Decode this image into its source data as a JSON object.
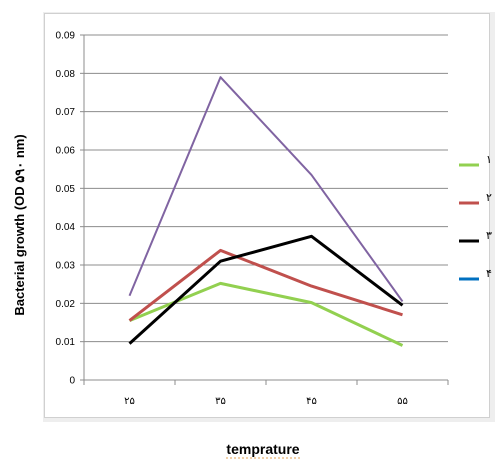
{
  "chart_data": {
    "type": "line",
    "x": [
      "۲۵",
      "۳۵",
      "۴۵",
      "۵۵"
    ],
    "ylabel": "Bacterial growth (OD ۵۹۰ nm)",
    "xlabel": "temprature",
    "ylim": [
      0,
      0.09
    ],
    "yticks": [
      "0",
      "0.01",
      "0.02",
      "0.03",
      "0.04",
      "0.05",
      "0.06",
      "0.07",
      "0.08",
      "0.09"
    ],
    "grid": true,
    "legend_position": "right",
    "series": [
      {
        "name": "۱",
        "color": "#92D050",
        "values": [
          0.0155,
          0.0252,
          0.0202,
          0.009
        ]
      },
      {
        "name": "۲",
        "color": "#C0504D",
        "values": [
          0.0155,
          0.0338,
          0.0245,
          0.017
        ]
      },
      {
        "name": "۳",
        "color": "#000000",
        "values": [
          0.0095,
          0.031,
          0.0375,
          0.0195
        ]
      },
      {
        "name": "۴",
        "color": "#0070C0",
        "values": [
          null,
          null,
          null,
          null
        ]
      },
      {
        "name": "",
        "color": "#8064A2",
        "values": [
          0.022,
          0.079,
          0.0535,
          0.0205
        ]
      }
    ]
  }
}
